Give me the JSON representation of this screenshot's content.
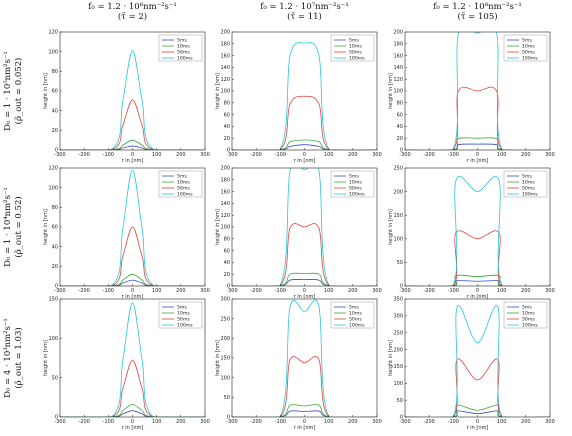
{
  "figure": {
    "column_titles": [
      [
        "f₀ = 1.2 · 10⁶nm⁻²s⁻¹",
        "(τ̄ = 2)"
      ],
      [
        "f₀ = 1.2 · 10⁷nm⁻²s⁻¹",
        "(τ̄ = 11)"
      ],
      [
        "f₀ = 1.2 · 10⁸nm⁻²s⁻¹",
        "(τ̄ = 105)"
      ]
    ],
    "row_titles": [
      [
        "D₀ = 1 · 10⁵nm²s⁻¹",
        "(ρ̃_out = 0.052)"
      ],
      [
        "D₀ = 1 · 10⁴nm²s⁻¹",
        "(ρ̃_out = 0.52)"
      ],
      [
        "D₀ = 4 · 10³nm²s⁻¹",
        "(ρ̃_out = 1.03)"
      ]
    ],
    "series_colors": {
      "5ms": "#3b4cc0",
      "10ms": "#2ab0b0",
      "50ms": "#e0443a",
      "100ms": "#27c7d8"
    },
    "green_color": "#3aa83a"
  },
  "chart_data": [
    {
      "type": "line",
      "panel": "r1c1",
      "xlabel": "r in [nm]",
      "ylabel": "height in [nm]",
      "xlim": [
        -300,
        300
      ],
      "ylim": [
        0,
        120
      ],
      "xticks": [
        -300,
        -200,
        -100,
        0,
        100,
        200,
        300
      ],
      "yticks": [
        0,
        20,
        40,
        60,
        80,
        100,
        120
      ],
      "series": [
        {
          "name": "5ms",
          "color": "#3b4cc0",
          "x": [
            -300,
            -80,
            -40,
            0,
            40,
            80,
            300
          ],
          "y": [
            0,
            0.2,
            2,
            4,
            2,
            0.2,
            0
          ]
        },
        {
          "name": "10ms",
          "color": "#3aa83a",
          "x": [
            -300,
            -80,
            -40,
            0,
            40,
            80,
            300
          ],
          "y": [
            0,
            0.5,
            5,
            10,
            5,
            0.5,
            0
          ]
        },
        {
          "name": "50ms",
          "color": "#e0443a",
          "x": [
            -300,
            -80,
            -40,
            0,
            40,
            80,
            300
          ],
          "y": [
            0,
            1,
            25,
            51,
            25,
            1,
            0
          ]
        },
        {
          "name": "100ms",
          "color": "#27c7d8",
          "x": [
            -300,
            -80,
            -40,
            0,
            40,
            80,
            300
          ],
          "y": [
            0,
            2,
            50,
            101,
            50,
            2,
            0
          ]
        }
      ]
    },
    {
      "type": "line",
      "panel": "r1c2",
      "xlabel": "r in [nm]",
      "ylabel": "height in [nm]",
      "xlim": [
        -300,
        300
      ],
      "ylim": [
        0,
        200
      ],
      "xticks": [
        -300,
        -200,
        -100,
        0,
        100,
        200,
        300
      ],
      "yticks": [
        0,
        20,
        40,
        60,
        80,
        100,
        120,
        140,
        160,
        180,
        200
      ],
      "series": [
        {
          "name": "5ms",
          "color": "#3b4cc0",
          "x": [
            -300,
            -100,
            -60,
            0,
            60,
            100,
            300
          ],
          "y": [
            0,
            0.3,
            6,
            9,
            6,
            0.3,
            0
          ]
        },
        {
          "name": "10ms",
          "color": "#3aa83a",
          "x": [
            -300,
            -100,
            -60,
            0,
            60,
            100,
            300
          ],
          "y": [
            0,
            0.5,
            14,
            17,
            14,
            0.5,
            0
          ]
        },
        {
          "name": "50ms",
          "color": "#e0443a",
          "x": [
            -300,
            -100,
            -60,
            0,
            60,
            100,
            300
          ],
          "y": [
            0,
            1,
            78,
            91,
            78,
            1,
            0
          ]
        },
        {
          "name": "100ms",
          "color": "#27c7d8",
          "x": [
            -300,
            -100,
            -60,
            0,
            60,
            100,
            300
          ],
          "y": [
            0,
            2,
            160,
            181,
            160,
            2,
            0
          ]
        }
      ]
    },
    {
      "type": "line",
      "panel": "r1c3",
      "xlabel": "r in [nm]",
      "ylabel": "height in [nm]",
      "xlim": [
        -300,
        300
      ],
      "ylim": [
        0,
        200
      ],
      "xticks": [
        -300,
        -200,
        -100,
        0,
        100,
        200,
        300
      ],
      "yticks": [
        0,
        20,
        40,
        60,
        80,
        100,
        120,
        140,
        160,
        180,
        200
      ],
      "series": [
        {
          "name": "5ms",
          "color": "#3b4cc0",
          "x": [
            -300,
            -100,
            -80,
            0,
            80,
            100,
            300
          ],
          "y": [
            0,
            0.3,
            9,
            10,
            9,
            0.3,
            0
          ]
        },
        {
          "name": "10ms",
          "color": "#3aa83a",
          "x": [
            -300,
            -100,
            -80,
            0,
            80,
            100,
            300
          ],
          "y": [
            0,
            0.5,
            19,
            20,
            19,
            0.5,
            0
          ]
        },
        {
          "name": "50ms",
          "color": "#e0443a",
          "x": [
            -300,
            -100,
            -80,
            0,
            80,
            100,
            300
          ],
          "y": [
            0,
            1,
            99,
            100,
            99,
            1,
            0
          ]
        },
        {
          "name": "100ms",
          "color": "#27c7d8",
          "x": [
            -300,
            -100,
            -80,
            0,
            80,
            100,
            300
          ],
          "y": [
            0,
            2,
            196,
            198,
            196,
            2,
            0
          ]
        }
      ]
    },
    {
      "type": "line",
      "panel": "r2c1",
      "xlabel": "r in [nm]",
      "ylabel": "height in [nm]",
      "xlim": [
        -300,
        300
      ],
      "ylim": [
        0,
        120
      ],
      "xticks": [
        -300,
        -200,
        -100,
        0,
        100,
        200,
        300
      ],
      "yticks": [
        0,
        20,
        40,
        60,
        80,
        100,
        120
      ],
      "series": [
        {
          "name": "5ms",
          "color": "#3b4cc0",
          "x": [
            -300,
            -80,
            -40,
            0,
            40,
            80,
            300
          ],
          "y": [
            0,
            0.2,
            3,
            6,
            3,
            0.2,
            0
          ]
        },
        {
          "name": "10ms",
          "color": "#3aa83a",
          "x": [
            -300,
            -80,
            -40,
            0,
            40,
            80,
            300
          ],
          "y": [
            0,
            0.5,
            6,
            12,
            6,
            0.5,
            0
          ]
        },
        {
          "name": "50ms",
          "color": "#e0443a",
          "x": [
            -300,
            -80,
            -40,
            0,
            40,
            80,
            300
          ],
          "y": [
            0,
            1,
            30,
            60,
            30,
            1,
            0
          ]
        },
        {
          "name": "100ms",
          "color": "#27c7d8",
          "x": [
            -300,
            -80,
            -40,
            0,
            40,
            80,
            300
          ],
          "y": [
            0,
            2,
            58,
            118,
            58,
            2,
            0
          ]
        }
      ]
    },
    {
      "type": "line",
      "panel": "r2c2",
      "xlabel": "r in [nm]",
      "ylabel": "height in [nm]",
      "xlim": [
        -300,
        300
      ],
      "ylim": [
        0,
        200
      ],
      "xticks": [
        -300,
        -200,
        -100,
        0,
        100,
        200,
        300
      ],
      "yticks": [
        0,
        20,
        40,
        60,
        80,
        100,
        120,
        140,
        160,
        180,
        200
      ],
      "series": [
        {
          "name": "5ms",
          "color": "#3b4cc0",
          "x": [
            -300,
            -100,
            -60,
            0,
            60,
            100,
            300
          ],
          "y": [
            0,
            0.3,
            10,
            11,
            10,
            0.3,
            0
          ]
        },
        {
          "name": "10ms",
          "color": "#3aa83a",
          "x": [
            -300,
            -100,
            -60,
            0,
            60,
            100,
            300
          ],
          "y": [
            0,
            0.5,
            20,
            21,
            20,
            0.5,
            0
          ]
        },
        {
          "name": "50ms",
          "color": "#e0443a",
          "x": [
            -300,
            -100,
            -60,
            0,
            60,
            100,
            300
          ],
          "y": [
            0,
            1,
            98,
            100,
            98,
            1,
            0
          ]
        },
        {
          "name": "100ms",
          "color": "#27c7d8",
          "x": [
            -300,
            -100,
            -60,
            0,
            60,
            100,
            300
          ],
          "y": [
            0,
            2,
            195,
            197,
            195,
            2,
            0
          ]
        }
      ]
    },
    {
      "type": "line",
      "panel": "r2c3",
      "xlabel": "r in [nm]",
      "ylabel": "height in [nm]",
      "xlim": [
        -300,
        300
      ],
      "ylim": [
        0,
        250
      ],
      "xticks": [
        -300,
        -200,
        -100,
        0,
        100,
        200,
        300
      ],
      "yticks": [
        0,
        50,
        100,
        150,
        200,
        250
      ],
      "series": [
        {
          "name": "5ms",
          "color": "#3b4cc0",
          "x": [
            -300,
            -100,
            -90,
            0,
            90,
            100,
            300
          ],
          "y": [
            0,
            0.3,
            11,
            10,
            11,
            0.3,
            0
          ]
        },
        {
          "name": "10ms",
          "color": "#3aa83a",
          "x": [
            -300,
            -100,
            -90,
            0,
            90,
            100,
            300
          ],
          "y": [
            0,
            0.5,
            22,
            20,
            22,
            0.5,
            0
          ]
        },
        {
          "name": "50ms",
          "color": "#e0443a",
          "x": [
            -300,
            -100,
            -90,
            0,
            90,
            100,
            300
          ],
          "y": [
            0,
            1,
            112,
            100,
            112,
            1,
            0
          ]
        },
        {
          "name": "100ms",
          "color": "#27c7d8",
          "x": [
            -300,
            -100,
            -90,
            0,
            90,
            100,
            300
          ],
          "y": [
            0,
            2,
            222,
            200,
            222,
            2,
            0
          ]
        }
      ]
    },
    {
      "type": "line",
      "panel": "r3c1",
      "xlabel": "r in [nm]",
      "ylabel": "height in [nm]",
      "xlim": [
        -300,
        300
      ],
      "ylim": [
        0,
        150
      ],
      "xticks": [
        -300,
        -200,
        -100,
        0,
        100,
        200,
        300
      ],
      "yticks": [
        0,
        50,
        100,
        150
      ],
      "series": [
        {
          "name": "5ms",
          "color": "#3b4cc0",
          "x": [
            -300,
            -80,
            -40,
            0,
            40,
            80,
            300
          ],
          "y": [
            0,
            0.2,
            4,
            8,
            4,
            0.2,
            0
          ]
        },
        {
          "name": "10ms",
          "color": "#3aa83a",
          "x": [
            -300,
            -80,
            -40,
            0,
            40,
            80,
            300
          ],
          "y": [
            0,
            0.5,
            8,
            16,
            8,
            0.5,
            0
          ]
        },
        {
          "name": "50ms",
          "color": "#e0443a",
          "x": [
            -300,
            -80,
            -40,
            0,
            40,
            80,
            300
          ],
          "y": [
            0,
            1,
            36,
            72,
            36,
            1,
            0
          ]
        },
        {
          "name": "100ms",
          "color": "#27c7d8",
          "x": [
            -300,
            -80,
            -40,
            0,
            40,
            80,
            300
          ],
          "y": [
            0,
            2,
            72,
            145,
            72,
            2,
            0
          ]
        }
      ]
    },
    {
      "type": "line",
      "panel": "r3c2",
      "xlabel": "r in [nm]",
      "ylabel": "height in [nm]",
      "xlim": [
        -300,
        300
      ],
      "ylim": [
        0,
        300
      ],
      "xticks": [
        -300,
        -200,
        -100,
        0,
        100,
        200,
        300
      ],
      "yticks": [
        0,
        50,
        100,
        150,
        200,
        250,
        300
      ],
      "series": [
        {
          "name": "5ms",
          "color": "#3b4cc0",
          "x": [
            -300,
            -100,
            -60,
            0,
            60,
            100,
            300
          ],
          "y": [
            0,
            0.3,
            15,
            14,
            15,
            0.3,
            0
          ]
        },
        {
          "name": "10ms",
          "color": "#3aa83a",
          "x": [
            -300,
            -100,
            -60,
            0,
            60,
            100,
            300
          ],
          "y": [
            0,
            0.5,
            30,
            28,
            30,
            0.5,
            0
          ]
        },
        {
          "name": "50ms",
          "color": "#e0443a",
          "x": [
            -300,
            -100,
            -60,
            0,
            60,
            100,
            300
          ],
          "y": [
            0,
            1,
            145,
            138,
            145,
            1,
            0
          ]
        },
        {
          "name": "100ms",
          "color": "#27c7d8",
          "x": [
            -300,
            -100,
            -60,
            0,
            60,
            100,
            300
          ],
          "y": [
            0,
            2,
            280,
            268,
            280,
            2,
            0
          ]
        }
      ]
    },
    {
      "type": "line",
      "panel": "r3c3",
      "xlabel": "r in [nm]",
      "ylabel": "height in [nm]",
      "xlim": [
        -300,
        300
      ],
      "ylim": [
        0,
        350
      ],
      "xticks": [
        -300,
        -200,
        -100,
        0,
        100,
        200,
        300
      ],
      "yticks": [
        0,
        50,
        100,
        150,
        200,
        250,
        300,
        350
      ],
      "series": [
        {
          "name": "5ms",
          "color": "#3b4cc0",
          "x": [
            -300,
            -100,
            -85,
            0,
            85,
            100,
            300
          ],
          "y": [
            0,
            0.3,
            18,
            10,
            18,
            0.3,
            0
          ]
        },
        {
          "name": "10ms",
          "color": "#3aa83a",
          "x": [
            -300,
            -100,
            -85,
            0,
            85,
            100,
            300
          ],
          "y": [
            0,
            0.5,
            35,
            20,
            35,
            0.5,
            0
          ]
        },
        {
          "name": "50ms",
          "color": "#e0443a",
          "x": [
            -300,
            -100,
            -85,
            0,
            85,
            100,
            300
          ],
          "y": [
            0,
            1,
            170,
            110,
            170,
            1,
            0
          ]
        },
        {
          "name": "100ms",
          "color": "#27c7d8",
          "x": [
            -300,
            -100,
            -85,
            0,
            85,
            100,
            300
          ],
          "y": [
            0,
            2,
            325,
            220,
            325,
            2,
            0
          ]
        }
      ]
    }
  ]
}
